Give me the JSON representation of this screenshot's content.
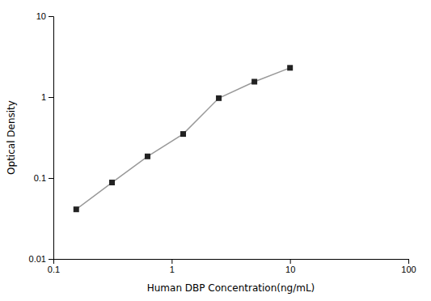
{
  "chart_data": {
    "type": "line",
    "x": [
      0.156,
      0.313,
      0.625,
      1.25,
      2.5,
      5.0,
      10.0
    ],
    "values": [
      0.041,
      0.088,
      0.185,
      0.35,
      0.97,
      1.55,
      2.3
    ],
    "xlabel": "Human DBP Concentration(ng/mL)",
    "ylabel": "Optical Density",
    "xlim": [
      0.1,
      100
    ],
    "ylim": [
      0.01,
      10
    ],
    "xticks": [
      0.1,
      1,
      10,
      100
    ],
    "yticks": [
      0.01,
      0.1,
      1,
      10
    ],
    "log": true,
    "grid": false,
    "color": "#999999",
    "marker": "square"
  }
}
